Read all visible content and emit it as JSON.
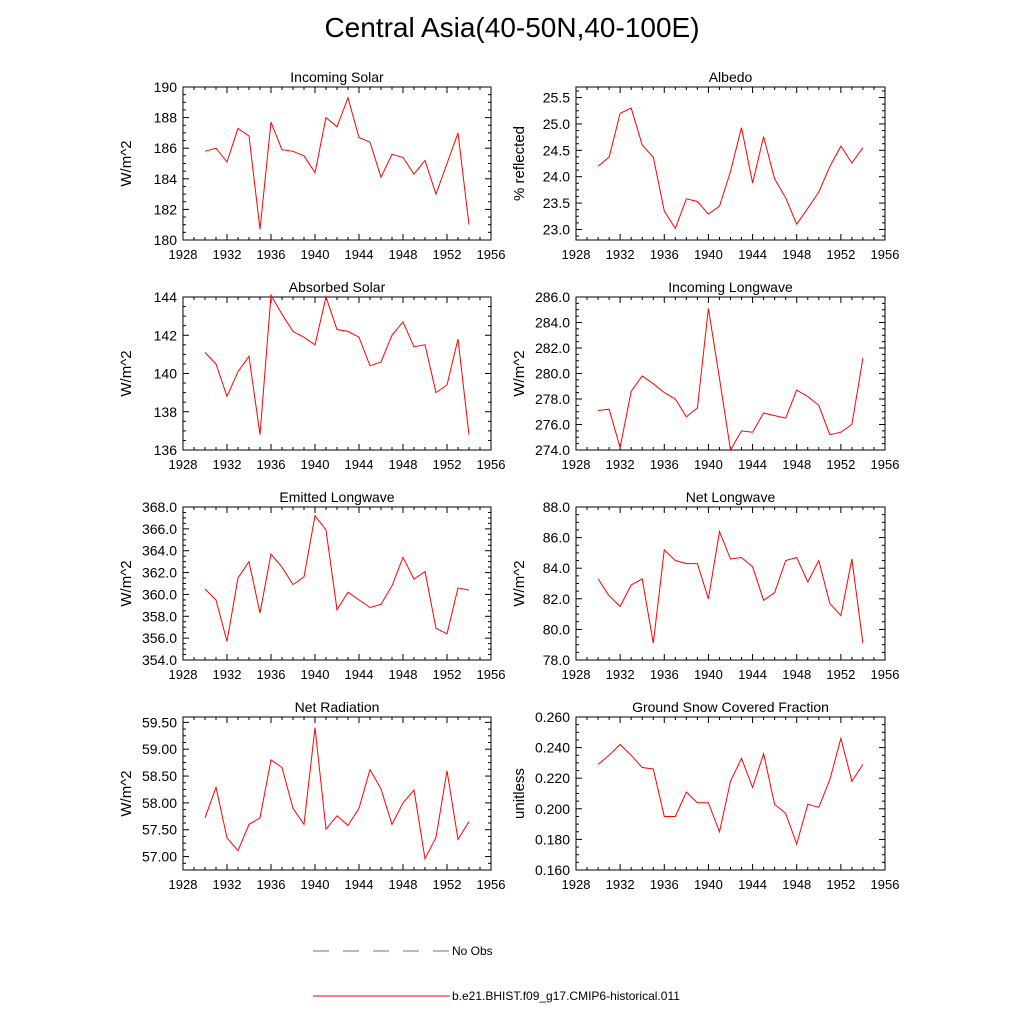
{
  "title": "Central Asia(40-50N,40-100E)",
  "colors": {
    "model": "#ff0000",
    "obs": "#6b6bc9"
  },
  "legend": {
    "obs_label": "No Obs",
    "model_label": "b.e21.BHIST.f09_g17.CMIP6-historical.011"
  },
  "chart_data": [
    {
      "type": "line",
      "title": "Incoming Solar",
      "ylabel": "W/m^2",
      "xlim": [
        1928,
        1956
      ],
      "xticks": [
        1928,
        1932,
        1936,
        1940,
        1944,
        1948,
        1952,
        1956
      ],
      "ylim": [
        180,
        190
      ],
      "yticks": [
        180,
        182,
        184,
        186,
        188,
        190
      ],
      "ytick_labels": [
        "180",
        "182",
        "184",
        "186",
        "188",
        "190"
      ],
      "series": [
        {
          "x": [
            1930,
            1931,
            1932,
            1933,
            1934,
            1935,
            1936,
            1937,
            1938,
            1939,
            1940,
            1941,
            1942,
            1943,
            1944,
            1945,
            1946,
            1947,
            1948,
            1949,
            1950,
            1951,
            1952,
            1953,
            1954
          ],
          "y": [
            185.8,
            186.0,
            185.1,
            187.3,
            186.8,
            180.7,
            187.7,
            185.9,
            185.8,
            185.5,
            184.4,
            188.0,
            187.4,
            189.3,
            186.7,
            186.4,
            184.1,
            185.6,
            185.4,
            184.3,
            185.2,
            183.0,
            185.0,
            187.0,
            181.0
          ]
        }
      ]
    },
    {
      "type": "line",
      "title": "Albedo",
      "ylabel": "% reflected",
      "xlim": [
        1928,
        1956
      ],
      "xticks": [
        1928,
        1932,
        1936,
        1940,
        1944,
        1948,
        1952,
        1956
      ],
      "ylim": [
        22.8,
        25.7
      ],
      "yticks": [
        23.0,
        23.5,
        24.0,
        24.5,
        25.0,
        25.5
      ],
      "ytick_labels": [
        "23.0",
        "23.5",
        "24.0",
        "24.5",
        "25.0",
        "25.5"
      ],
      "series": [
        {
          "x": [
            1930,
            1931,
            1932,
            1933,
            1934,
            1935,
            1936,
            1937,
            1938,
            1939,
            1940,
            1941,
            1942,
            1943,
            1944,
            1945,
            1946,
            1947,
            1948,
            1949,
            1950,
            1951,
            1952,
            1953,
            1954
          ],
          "y": [
            24.2,
            24.37,
            25.2,
            25.3,
            24.6,
            24.37,
            23.35,
            23.02,
            23.58,
            23.53,
            23.29,
            23.44,
            24.1,
            24.93,
            23.88,
            24.76,
            23.96,
            23.6,
            23.1,
            23.4,
            23.71,
            24.19,
            24.58,
            24.26,
            24.55
          ]
        }
      ]
    },
    {
      "type": "line",
      "title": "Absorbed Solar",
      "ylabel": "W/m^2",
      "xlim": [
        1928,
        1956
      ],
      "xticks": [
        1928,
        1932,
        1936,
        1940,
        1944,
        1948,
        1952,
        1956
      ],
      "ylim": [
        136,
        144
      ],
      "yticks": [
        136,
        138,
        140,
        142,
        144
      ],
      "ytick_labels": [
        "136",
        "138",
        "140",
        "142",
        "144"
      ],
      "series": [
        {
          "x": [
            1930,
            1931,
            1932,
            1933,
            1934,
            1935,
            1936,
            1937,
            1938,
            1939,
            1940,
            1941,
            1942,
            1943,
            1944,
            1945,
            1946,
            1947,
            1948,
            1949,
            1950,
            1951,
            1952,
            1953,
            1954
          ],
          "y": [
            141.1,
            140.5,
            138.8,
            140.1,
            140.9,
            136.8,
            144.1,
            143.1,
            142.2,
            141.9,
            141.5,
            144.0,
            142.3,
            142.2,
            141.9,
            140.4,
            140.6,
            142.0,
            142.7,
            141.4,
            141.5,
            139.0,
            139.4,
            141.8,
            136.8
          ]
        }
      ]
    },
    {
      "type": "line",
      "title": "Incoming Longwave",
      "ylabel": "W/m^2",
      "xlim": [
        1928,
        1956
      ],
      "xticks": [
        1928,
        1932,
        1936,
        1940,
        1944,
        1948,
        1952,
        1956
      ],
      "ylim": [
        274,
        286
      ],
      "yticks": [
        274,
        276,
        278,
        280,
        282,
        284,
        286
      ],
      "ytick_labels": [
        "274.0",
        "276.0",
        "278.0",
        "280.0",
        "282.0",
        "284.0",
        "286.0"
      ],
      "series": [
        {
          "x": [
            1930,
            1931,
            1932,
            1933,
            1934,
            1935,
            1936,
            1937,
            1938,
            1939,
            1940,
            1941,
            1942,
            1943,
            1944,
            1945,
            1946,
            1947,
            1948,
            1949,
            1950,
            1951,
            1952,
            1953,
            1954
          ],
          "y": [
            277.1,
            277.2,
            274.2,
            278.6,
            279.8,
            279.2,
            278.5,
            278.0,
            276.6,
            277.3,
            285.1,
            279.6,
            274.0,
            275.5,
            275.4,
            276.9,
            276.7,
            276.5,
            278.7,
            278.2,
            277.5,
            275.2,
            275.4,
            276.0,
            281.2
          ]
        }
      ]
    },
    {
      "type": "line",
      "title": "Emitted Longwave",
      "ylabel": "W/m^2",
      "xlim": [
        1928,
        1956
      ],
      "xticks": [
        1928,
        1932,
        1936,
        1940,
        1944,
        1948,
        1952,
        1956
      ],
      "ylim": [
        354,
        368
      ],
      "yticks": [
        354,
        356,
        358,
        360,
        362,
        364,
        366,
        368
      ],
      "ytick_labels": [
        "354.0",
        "356.0",
        "358.0",
        "360.0",
        "362.0",
        "364.0",
        "366.0",
        "368.0"
      ],
      "series": [
        {
          "x": [
            1930,
            1931,
            1932,
            1933,
            1934,
            1935,
            1936,
            1937,
            1938,
            1939,
            1940,
            1941,
            1942,
            1943,
            1944,
            1945,
            1946,
            1947,
            1948,
            1949,
            1950,
            1951,
            1952,
            1953,
            1954
          ],
          "y": [
            360.5,
            359.5,
            355.7,
            361.5,
            363.0,
            358.3,
            363.7,
            362.5,
            360.9,
            361.6,
            367.2,
            365.9,
            358.6,
            360.2,
            359.5,
            358.8,
            359.1,
            360.8,
            363.4,
            361.4,
            362.1,
            356.9,
            356.4,
            360.6,
            360.4
          ]
        }
      ]
    },
    {
      "type": "line",
      "title": "Net Longwave",
      "ylabel": "W/m^2",
      "xlim": [
        1928,
        1956
      ],
      "xticks": [
        1928,
        1932,
        1936,
        1940,
        1944,
        1948,
        1952,
        1956
      ],
      "ylim": [
        78,
        88
      ],
      "yticks": [
        78,
        80,
        82,
        84,
        86,
        88
      ],
      "ytick_labels": [
        "78.0",
        "80.0",
        "82.0",
        "84.0",
        "86.0",
        "88.0"
      ],
      "series": [
        {
          "x": [
            1930,
            1931,
            1932,
            1933,
            1934,
            1935,
            1936,
            1937,
            1938,
            1939,
            1940,
            1941,
            1942,
            1943,
            1944,
            1945,
            1946,
            1947,
            1948,
            1949,
            1950,
            1951,
            1952,
            1953,
            1954
          ],
          "y": [
            83.3,
            82.2,
            81.5,
            82.9,
            83.3,
            79.1,
            85.2,
            84.5,
            84.3,
            84.3,
            82.0,
            86.4,
            84.6,
            84.7,
            84.1,
            81.9,
            82.4,
            84.5,
            84.7,
            83.1,
            84.5,
            81.7,
            80.9,
            84.6,
            79.1
          ]
        }
      ]
    },
    {
      "type": "line",
      "title": "Net Radiation",
      "ylabel": "W/m^2",
      "xlim": [
        1928,
        1956
      ],
      "xticks": [
        1928,
        1932,
        1936,
        1940,
        1944,
        1948,
        1952,
        1956
      ],
      "ylim": [
        56.75,
        59.6
      ],
      "yticks": [
        57.0,
        57.5,
        58.0,
        58.5,
        59.0,
        59.5
      ],
      "ytick_labels": [
        "57.00",
        "57.50",
        "58.00",
        "58.50",
        "59.00",
        "59.50"
      ],
      "series": [
        {
          "x": [
            1930,
            1931,
            1932,
            1933,
            1934,
            1935,
            1936,
            1937,
            1938,
            1939,
            1940,
            1941,
            1942,
            1943,
            1944,
            1945,
            1946,
            1947,
            1948,
            1949,
            1950,
            1951,
            1952,
            1953,
            1954
          ],
          "y": [
            57.72,
            58.29,
            57.35,
            57.11,
            57.6,
            57.72,
            58.8,
            58.66,
            57.9,
            57.6,
            59.4,
            57.51,
            57.76,
            57.58,
            57.9,
            58.62,
            58.26,
            57.6,
            58.0,
            58.24,
            56.96,
            57.36,
            58.6,
            57.32,
            57.65
          ]
        }
      ]
    },
    {
      "type": "line",
      "title": "Ground Snow Covered Fraction",
      "ylabel": "unitless",
      "xlim": [
        1928,
        1956
      ],
      "xticks": [
        1928,
        1932,
        1936,
        1940,
        1944,
        1948,
        1952,
        1956
      ],
      "ylim": [
        0.16,
        0.26
      ],
      "yticks": [
        0.16,
        0.18,
        0.2,
        0.22,
        0.24,
        0.26
      ],
      "ytick_labels": [
        "0.160",
        "0.180",
        "0.200",
        "0.220",
        "0.240",
        "0.260"
      ],
      "series": [
        {
          "x": [
            1930,
            1931,
            1932,
            1933,
            1934,
            1935,
            1936,
            1937,
            1938,
            1939,
            1940,
            1941,
            1942,
            1943,
            1944,
            1945,
            1946,
            1947,
            1948,
            1949,
            1950,
            1951,
            1952,
            1953,
            1954
          ],
          "y": [
            0.229,
            0.235,
            0.242,
            0.235,
            0.227,
            0.226,
            0.195,
            0.195,
            0.211,
            0.204,
            0.204,
            0.185,
            0.218,
            0.233,
            0.214,
            0.236,
            0.203,
            0.197,
            0.177,
            0.203,
            0.201,
            0.219,
            0.246,
            0.218,
            0.229
          ]
        }
      ]
    }
  ]
}
